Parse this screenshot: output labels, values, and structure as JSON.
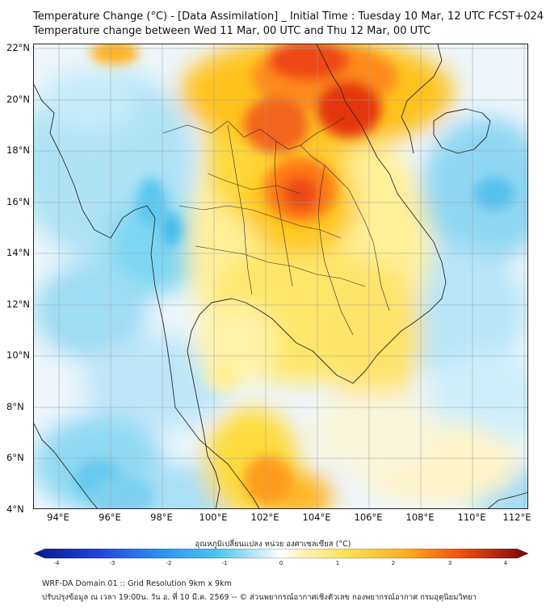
{
  "title_line1": "Temperature Change (°C) - [Data Assimilation] _ Initial Time : Tuesday 10 Mar, 12 UTC FCST+024",
  "title_line2": "Temperature change between Wed 11 Mar, 00 UTC and Thu 12 Mar, 00 UTC",
  "map": {
    "lat_ticks": [
      "22°N",
      "20°N",
      "18°N",
      "16°N",
      "14°N",
      "12°N",
      "10°N",
      "8°N",
      "6°N",
      "4°N"
    ],
    "lon_ticks": [
      "94°E",
      "96°E",
      "98°E",
      "100°E",
      "102°E",
      "104°E",
      "106°E",
      "108°E",
      "110°E",
      "112°E"
    ],
    "region": "Thailand / Mainland Southeast Asia",
    "colors": {
      "cool_light": "#cfeefa",
      "cool_mid": "#6fd3f2",
      "cool_strong": "#33b5eb",
      "neutral": "#f3f8fb",
      "warm_light": "#fff3a8",
      "warm_mid": "#ffd31a",
      "warm_strong": "#ff9a1e",
      "hot": "#ee4a10",
      "very_hot": "#c81a08",
      "land_border": "#2a2a2a",
      "graticule": "#9aa0a6"
    }
  },
  "colorbar": {
    "label": "อุณหภูมิเปลี่ยนแปลง หน่วย องศาเซลเซียส (°C)",
    "ticks": [
      "-4",
      "-3",
      "-2",
      "-1",
      "0",
      "1",
      "2",
      "3",
      "4"
    ],
    "min": -4,
    "max": 4
  },
  "footer_line1": "WRF-DA Domain 01 :: Grid Resolution 9km x 9km",
  "footer_line2": "ปรับปรุงข้อมูล ณ เวลา 19:00น. วัน อ. ที่ 10 มี.ค. 2569 -- © ส่วนพยากรณ์อากาศเชิงตัวเลข กองพยากรณ์อากาศ กรมอุตุนิยมวิทยา"
}
